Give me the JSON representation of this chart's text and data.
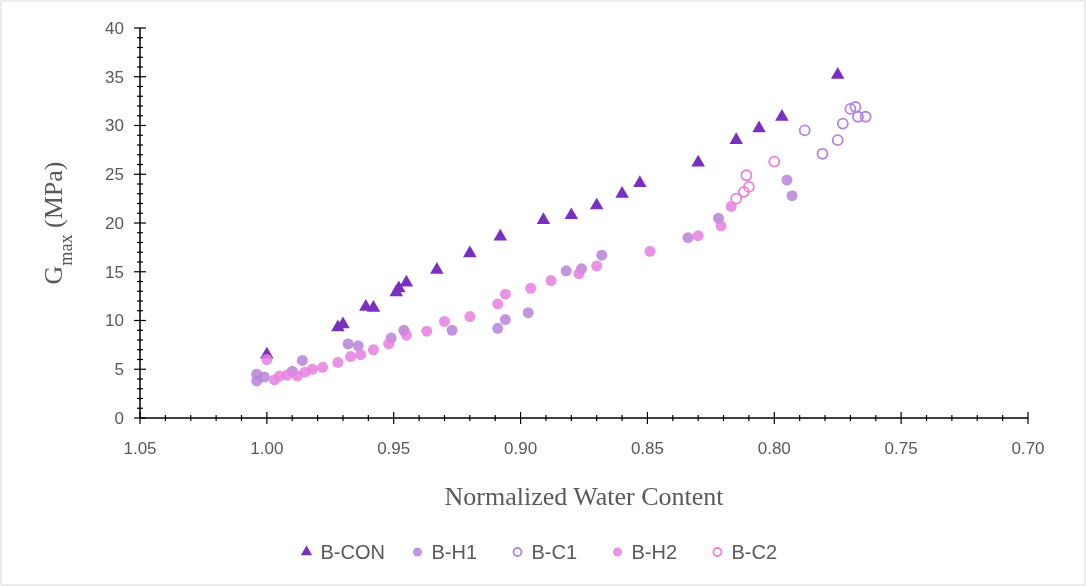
{
  "chart_data": {
    "type": "scatter",
    "xlabel": "Normalized Water Content",
    "ylabel": "G$_{max}$ (MPa)",
    "xlim": [
      1.05,
      0.7
    ],
    "xticks": [
      {
        "value": 1.05,
        "label": "1.05"
      },
      {
        "value": 1.04,
        "label": null
      },
      {
        "value": 1.03,
        "label": null
      },
      {
        "value": 1.02,
        "label": null
      },
      {
        "value": 1.01,
        "label": null
      },
      {
        "value": 1.0,
        "label": "1.00"
      },
      {
        "value": 0.99,
        "label": null
      },
      {
        "value": 0.98,
        "label": null
      },
      {
        "value": 0.97,
        "label": null
      },
      {
        "value": 0.96,
        "label": null
      },
      {
        "value": 0.95,
        "label": "0.95"
      },
      {
        "value": 0.94,
        "label": null
      },
      {
        "value": 0.93,
        "label": null
      },
      {
        "value": 0.92,
        "label": null
      },
      {
        "value": 0.91,
        "label": null
      },
      {
        "value": 0.9,
        "label": "0.90"
      },
      {
        "value": 0.89,
        "label": null
      },
      {
        "value": 0.88,
        "label": null
      },
      {
        "value": 0.87,
        "label": null
      },
      {
        "value": 0.86,
        "label": null
      },
      {
        "value": 0.85,
        "label": "0.85"
      },
      {
        "value": 0.84,
        "label": null
      },
      {
        "value": 0.83,
        "label": null
      },
      {
        "value": 0.82,
        "label": null
      },
      {
        "value": 0.81,
        "label": null
      },
      {
        "value": 0.8,
        "label": "0.80"
      },
      {
        "value": 0.79,
        "label": null
      },
      {
        "value": 0.78,
        "label": null
      },
      {
        "value": 0.77,
        "label": null
      },
      {
        "value": 0.76,
        "label": null
      },
      {
        "value": 0.75,
        "label": "0.75"
      },
      {
        "value": 0.74,
        "label": null
      },
      {
        "value": 0.73,
        "label": null
      },
      {
        "value": 0.72,
        "label": null
      },
      {
        "value": 0.71,
        "label": null
      },
      {
        "value": 0.7,
        "label": "0.70"
      }
    ],
    "ylim": [
      0,
      40
    ],
    "yticks": [
      0,
      {
        "value": 1,
        "label": null
      },
      {
        "value": 2,
        "label": null
      },
      {
        "value": 3,
        "label": null
      },
      {
        "value": 4,
        "label": null
      },
      5,
      {
        "value": 6,
        "label": null
      },
      {
        "value": 7,
        "label": null
      },
      {
        "value": 8,
        "label": null
      },
      {
        "value": 9,
        "label": null
      },
      10,
      {
        "value": 11,
        "label": null
      },
      {
        "value": 12,
        "label": null
      },
      {
        "value": 13,
        "label": null
      },
      {
        "value": 14,
        "label": null
      },
      15,
      {
        "value": 16,
        "label": null
      },
      {
        "value": 17,
        "label": null
      },
      {
        "value": 18,
        "label": null
      },
      {
        "value": 19,
        "label": null
      },
      20,
      {
        "value": 21,
        "label": null
      },
      {
        "value": 22,
        "label": null
      },
      {
        "value": 23,
        "label": null
      },
      {
        "value": 24,
        "label": null
      },
      25,
      {
        "value": 26,
        "label": null
      },
      {
        "value": 27,
        "label": null
      },
      {
        "value": 28,
        "label": null
      },
      {
        "value": 29,
        "label": null
      },
      30,
      {
        "value": 31,
        "label": null
      },
      {
        "value": 32,
        "label": null
      },
      {
        "value": 33,
        "label": null
      },
      {
        "value": 34,
        "label": null
      },
      35,
      {
        "value": 36,
        "label": null
      },
      {
        "value": 37,
        "label": null
      },
      {
        "value": 38,
        "label": null
      },
      {
        "value": 39,
        "label": null
      },
      40
    ],
    "grid": false,
    "legend": "bottom",
    "series": [
      {
        "name": "B-CON",
        "color": "#7b2fbe",
        "marker": "triangle",
        "x": [
          1.0,
          0.972,
          0.97,
          0.961,
          0.958,
          0.949,
          0.948,
          0.945,
          0.933,
          0.92,
          0.908,
          0.891,
          0.88,
          0.87,
          0.86,
          0.853,
          0.83,
          0.815,
          0.806,
          0.797,
          0.775
        ],
        "values": [
          6.5,
          9.3,
          9.6,
          11.4,
          11.3,
          12.9,
          13.3,
          13.9,
          15.2,
          16.9,
          18.6,
          20.3,
          20.8,
          21.8,
          23.0,
          24.1,
          26.2,
          28.5,
          29.7,
          30.9,
          35.2
        ]
      },
      {
        "name": "B-H1",
        "color": "#b684d8",
        "marker": "circle",
        "x": [
          1.004,
          1.004,
          1.001,
          0.99,
          0.986,
          0.968,
          0.964,
          0.951,
          0.946,
          0.927,
          0.909,
          0.906,
          0.897,
          0.882,
          0.876,
          0.868,
          0.834,
          0.822,
          0.795,
          0.793
        ],
        "values": [
          4.5,
          3.8,
          4.2,
          4.8,
          5.9,
          7.6,
          7.4,
          8.2,
          9.0,
          9.0,
          9.2,
          10.1,
          10.8,
          15.1,
          15.3,
          16.7,
          18.5,
          20.5,
          24.4,
          22.8
        ]
      },
      {
        "name": "B-C1",
        "color": "#b684d8",
        "marker": "circle-open",
        "x": [
          0.788,
          0.781,
          0.775,
          0.773,
          0.77,
          0.768,
          0.767,
          0.764
        ],
        "values": [
          29.5,
          27.1,
          28.5,
          30.2,
          31.7,
          31.9,
          30.9,
          30.9
        ]
      },
      {
        "name": "B-H2",
        "color": "#e67fe0",
        "marker": "circle",
        "x": [
          1.0,
          0.997,
          0.995,
          0.992,
          0.988,
          0.985,
          0.982,
          0.978,
          0.972,
          0.967,
          0.963,
          0.958,
          0.952,
          0.945,
          0.937,
          0.93,
          0.92,
          0.909,
          0.906,
          0.896,
          0.888,
          0.877,
          0.87,
          0.849,
          0.83,
          0.821,
          0.817
        ],
        "values": [
          6.0,
          3.9,
          4.3,
          4.4,
          4.3,
          4.7,
          5.0,
          5.2,
          5.7,
          6.3,
          6.5,
          7.0,
          7.6,
          8.5,
          8.9,
          9.9,
          10.4,
          11.7,
          12.7,
          13.3,
          14.1,
          14.8,
          15.6,
          17.1,
          18.7,
          19.7,
          21.7
        ]
      },
      {
        "name": "B-C2",
        "color": "#e67fe0",
        "marker": "circle-open",
        "x": [
          0.811,
          0.81,
          0.812,
          0.815,
          0.8
        ],
        "values": [
          24.9,
          23.7,
          23.2,
          22.5,
          26.3
        ]
      }
    ]
  }
}
